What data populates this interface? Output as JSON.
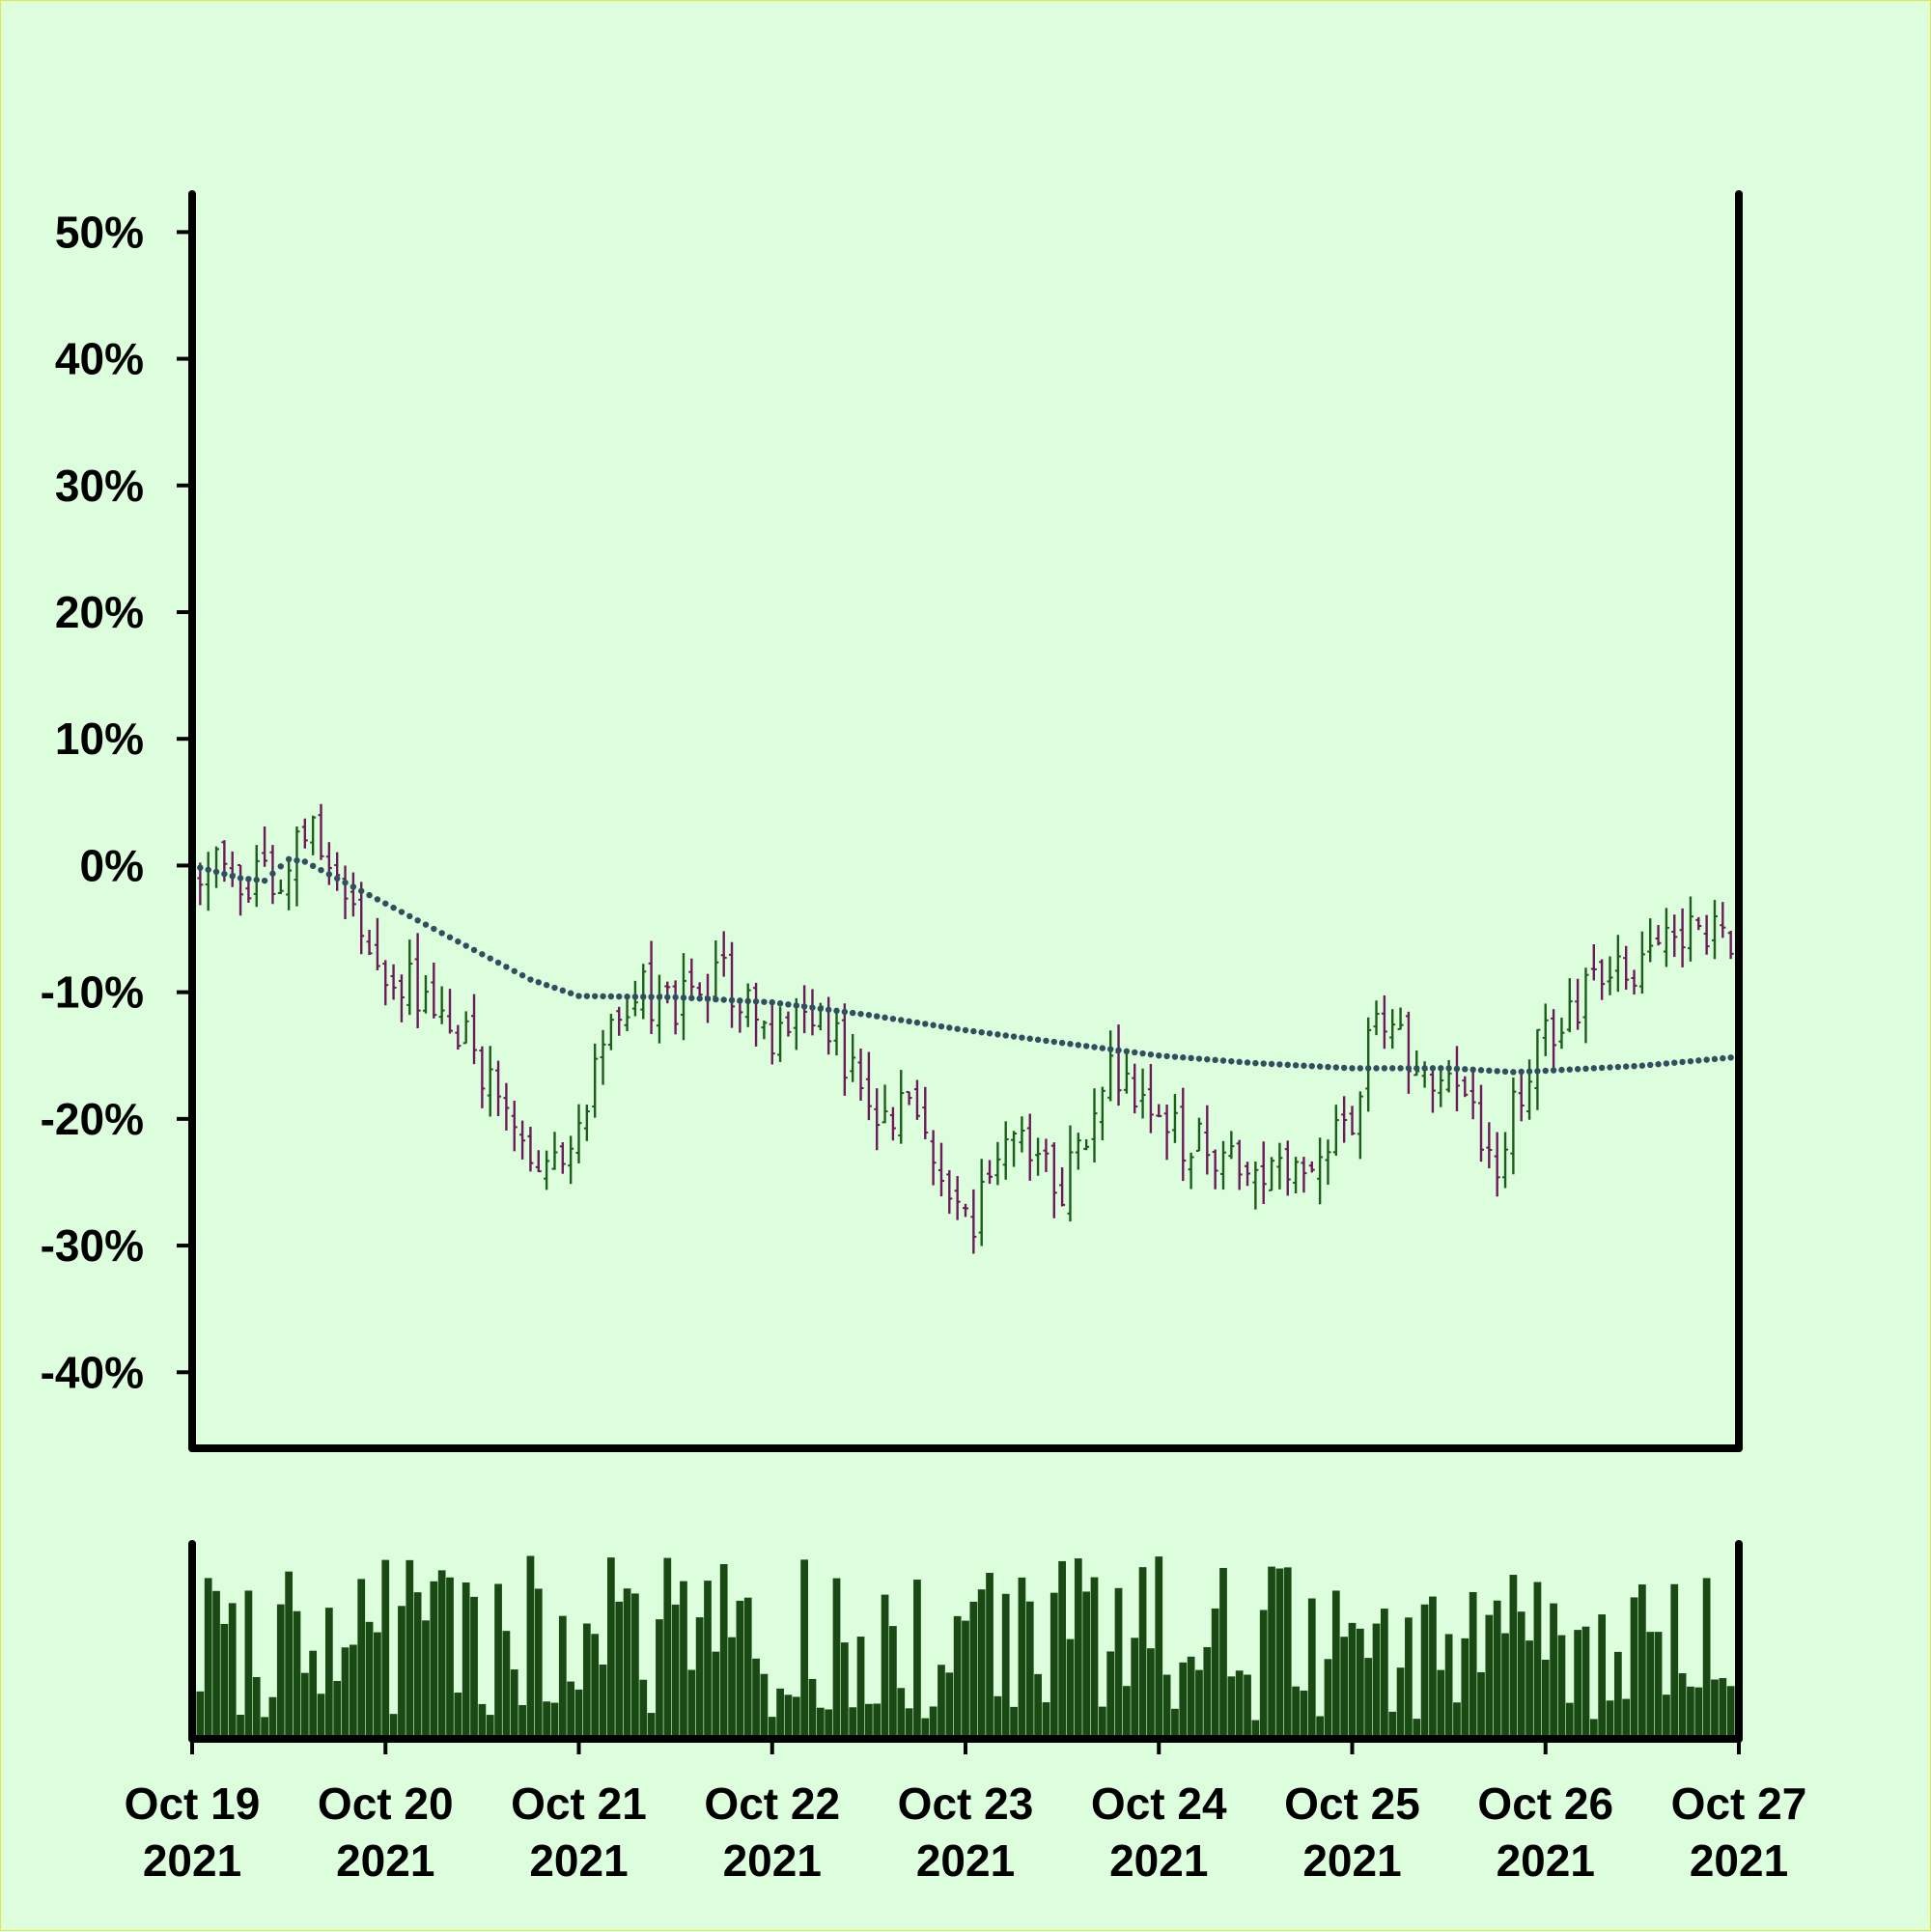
{
  "chart_data": {
    "type": "ohlc",
    "title": "",
    "xlabel": "",
    "ylabel": "",
    "ylim": [
      -46,
      53
    ],
    "yticks": [
      50,
      40,
      30,
      20,
      10,
      0,
      -10,
      -20,
      -30,
      -40
    ],
    "ytick_labels": [
      "50%",
      "40%",
      "30%",
      "20%",
      "10%",
      "0%",
      "-10%",
      "-20%",
      "-30%",
      "-40%"
    ],
    "xlim": [
      "2021-10-19T00:00",
      "2021-10-27T00:00"
    ],
    "xticks": [
      {
        "date": "2021-10-19",
        "line1": "Oct 19",
        "line2": "2021"
      },
      {
        "date": "2021-10-20",
        "line1": "Oct 20",
        "line2": "2021"
      },
      {
        "date": "2021-10-21",
        "line1": "Oct 21",
        "line2": "2021"
      },
      {
        "date": "2021-10-22",
        "line1": "Oct 22",
        "line2": "2021"
      },
      {
        "date": "2021-10-23",
        "line1": "Oct 23",
        "line2": "2021"
      },
      {
        "date": "2021-10-24",
        "line1": "Oct 24",
        "line2": "2021"
      },
      {
        "date": "2021-10-25",
        "line1": "Oct 25",
        "line2": "2021"
      },
      {
        "date": "2021-10-26",
        "line1": "Oct 26",
        "line2": "2021"
      },
      {
        "date": "2021-10-27",
        "line1": "Oct 27",
        "line2": "2021"
      }
    ],
    "bar_interval_hours": 1,
    "price_series": {
      "y_units": "% change",
      "close_anchors": [
        [
          "2021-10-19T00:00",
          0
        ],
        [
          "2021-10-19T06:00",
          -1
        ],
        [
          "2021-10-19T10:00",
          -1.5
        ],
        [
          "2021-10-19T15:00",
          3
        ],
        [
          "2021-10-19T19:00",
          -1
        ],
        [
          "2021-10-20T00:00",
          -8
        ],
        [
          "2021-10-20T08:00",
          -12
        ],
        [
          "2021-10-20T14:00",
          -18
        ],
        [
          "2021-10-20T18:00",
          -25
        ],
        [
          "2021-10-21T00:00",
          -20
        ],
        [
          "2021-10-21T06:00",
          -10
        ],
        [
          "2021-10-21T12:00",
          -11
        ],
        [
          "2021-10-21T18:00",
          -9
        ],
        [
          "2021-10-22T00:00",
          -14
        ],
        [
          "2021-10-22T06:00",
          -12
        ],
        [
          "2021-10-22T12:00",
          -19
        ],
        [
          "2021-10-22T18:00",
          -20
        ],
        [
          "2021-10-23T00:00",
          -29
        ],
        [
          "2021-10-23T06:00",
          -21
        ],
        [
          "2021-10-23T12:00",
          -25
        ],
        [
          "2021-10-23T18:00",
          -17
        ],
        [
          "2021-10-24T00:00",
          -21
        ],
        [
          "2021-10-24T06:00",
          -22
        ],
        [
          "2021-10-24T12:00",
          -23
        ],
        [
          "2021-10-24T18:00",
          -24
        ],
        [
          "2021-10-25T00:00",
          -20
        ],
        [
          "2021-10-25T03:00",
          -12
        ],
        [
          "2021-10-25T08:00",
          -16
        ],
        [
          "2021-10-25T12:00",
          -18
        ],
        [
          "2021-10-25T18:00",
          -23
        ],
        [
          "2021-10-26T00:00",
          -13
        ],
        [
          "2021-10-26T06:00",
          -10
        ],
        [
          "2021-10-26T12:00",
          -8
        ],
        [
          "2021-10-26T18:00",
          -5
        ],
        [
          "2021-10-27T00:00",
          -6
        ]
      ],
      "up_color": "#1b5e1b",
      "down_color": "#6b1a5a"
    },
    "moving_average": {
      "style": "dotted",
      "color": "#2f4f5f",
      "points": [
        [
          "2021-10-19T00:00",
          0
        ],
        [
          "2021-10-19T06:00",
          -1
        ],
        [
          "2021-10-19T09:00",
          -1.2
        ],
        [
          "2021-10-19T12:00",
          0.5
        ],
        [
          "2021-10-19T14:00",
          0.3
        ],
        [
          "2021-10-20T00:00",
          -3
        ],
        [
          "2021-10-20T06:00",
          -5
        ],
        [
          "2021-10-20T12:00",
          -7
        ],
        [
          "2021-10-20T18:00",
          -9
        ],
        [
          "2021-10-21T00:00",
          -10.3
        ],
        [
          "2021-10-21T12:00",
          -10.4
        ],
        [
          "2021-10-22T00:00",
          -10.8
        ],
        [
          "2021-10-22T12:00",
          -11.8
        ],
        [
          "2021-10-23T00:00",
          -13
        ],
        [
          "2021-10-23T12:00",
          -14
        ],
        [
          "2021-10-24T00:00",
          -15
        ],
        [
          "2021-10-24T12:00",
          -15.6
        ],
        [
          "2021-10-25T00:00",
          -16
        ],
        [
          "2021-10-25T12:00",
          -16
        ],
        [
          "2021-10-25T20:00",
          -16.3
        ],
        [
          "2021-10-26T00:00",
          -16.2
        ],
        [
          "2021-10-26T12:00",
          -15.8
        ],
        [
          "2021-10-27T00:00",
          -15.1
        ]
      ]
    },
    "volume": {
      "units": "relative",
      "color": "#1a4a14",
      "ylim": [
        0,
        1
      ]
    },
    "legend": "none",
    "grid": false
  }
}
